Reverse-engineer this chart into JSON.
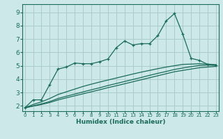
{
  "background_color": "#cce8e8",
  "grid_color": "#aacccc",
  "line_color": "#1a6b5a",
  "xlabel": "Humidex (Indice chaleur)",
  "x_ticks": [
    0,
    1,
    2,
    3,
    4,
    5,
    6,
    7,
    8,
    9,
    10,
    11,
    12,
    13,
    14,
    15,
    16,
    17,
    18,
    19,
    20,
    21,
    22,
    23
  ],
  "y_ticks": [
    2,
    3,
    4,
    5,
    6,
    7,
    8,
    9
  ],
  "ylim": [
    1.6,
    9.6
  ],
  "xlim": [
    -0.3,
    23.3
  ],
  "series1_y": [
    1.85,
    2.45,
    2.45,
    3.6,
    4.75,
    4.9,
    5.2,
    5.15,
    5.15,
    5.3,
    5.5,
    6.35,
    6.85,
    6.55,
    6.65,
    6.65,
    7.25,
    8.35,
    8.9,
    7.35,
    5.55,
    5.4,
    5.1,
    5.05
  ],
  "series2_y": [
    1.85,
    2.1,
    2.3,
    2.55,
    2.85,
    3.05,
    3.25,
    3.45,
    3.62,
    3.78,
    3.93,
    4.08,
    4.23,
    4.38,
    4.52,
    4.65,
    4.78,
    4.9,
    5.0,
    5.1,
    5.12,
    5.15,
    5.12,
    5.08
  ],
  "series3_y": [
    1.85,
    2.0,
    2.15,
    2.32,
    2.55,
    2.72,
    2.88,
    3.04,
    3.2,
    3.35,
    3.52,
    3.67,
    3.82,
    3.97,
    4.12,
    4.28,
    4.43,
    4.57,
    4.72,
    4.83,
    4.93,
    5.02,
    5.05,
    5.02
  ],
  "series4_y": [
    1.85,
    1.98,
    2.1,
    2.25,
    2.44,
    2.6,
    2.75,
    2.9,
    3.05,
    3.2,
    3.36,
    3.5,
    3.65,
    3.8,
    3.95,
    4.1,
    4.25,
    4.4,
    4.55,
    4.65,
    4.75,
    4.85,
    4.9,
    4.95
  ]
}
